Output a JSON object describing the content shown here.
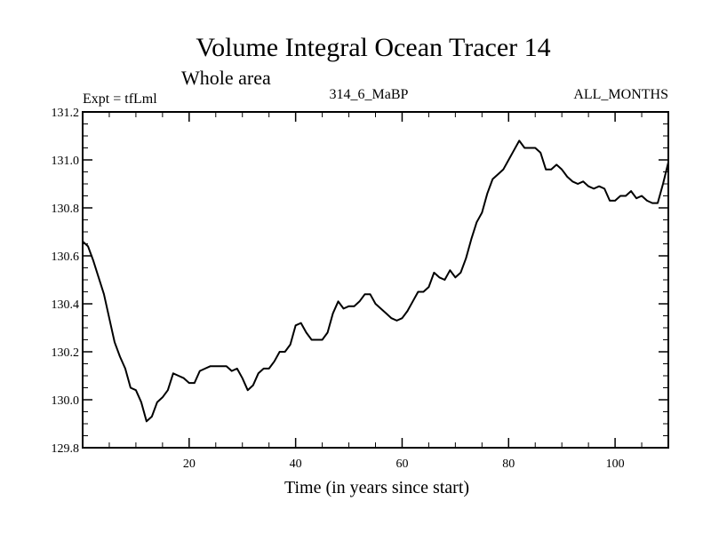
{
  "chart_data": {
    "type": "line",
    "title": "Volume Integral Ocean Tracer 14",
    "subtitle": "Whole area",
    "left_label": "Expt = tfLml",
    "center_label": "314_6_MaBP",
    "right_label": "ALL_MONTHS",
    "xlabel": "Time (in years since start)",
    "ylabel": "",
    "xlim": [
      0,
      110
    ],
    "ylim": [
      129.8,
      131.2
    ],
    "x_ticks": [
      20,
      40,
      60,
      80,
      100
    ],
    "y_ticks": [
      "129.8",
      "130.0",
      "130.2",
      "130.4",
      "130.6",
      "130.8",
      "131.0",
      "131.2"
    ],
    "grid": false,
    "series": [
      {
        "x": [
          0,
          1,
          2,
          3,
          4,
          5,
          6,
          7,
          8,
          9,
          10,
          11,
          12,
          13,
          14,
          15,
          16,
          17,
          18,
          19,
          20,
          21,
          22,
          23,
          24,
          25,
          26,
          27,
          28,
          29,
          30,
          31,
          32,
          33,
          34,
          35,
          36,
          37,
          38,
          39,
          40,
          41,
          42,
          43,
          44,
          45,
          46,
          47,
          48,
          49,
          50,
          51,
          52,
          53,
          54,
          55,
          56,
          57,
          58,
          59,
          60,
          61,
          62,
          63,
          64,
          65,
          66,
          67,
          68,
          69,
          70,
          71,
          72,
          73,
          74,
          75,
          76,
          77,
          78,
          79,
          80,
          81,
          82,
          83,
          84,
          85,
          86,
          87,
          88,
          89,
          90,
          91,
          92,
          93,
          94,
          95,
          96,
          97,
          98,
          99,
          100,
          101,
          102,
          103,
          104,
          105,
          106,
          107,
          108,
          109,
          110
        ],
        "values": [
          130.66,
          130.64,
          130.58,
          130.51,
          130.44,
          130.34,
          130.24,
          130.18,
          130.13,
          130.05,
          130.04,
          129.99,
          129.91,
          129.93,
          129.99,
          130.01,
          130.04,
          130.11,
          130.1,
          130.09,
          130.07,
          130.07,
          130.12,
          130.13,
          130.14,
          130.14,
          130.14,
          130.14,
          130.12,
          130.13,
          130.09,
          130.04,
          130.06,
          130.11,
          130.13,
          130.13,
          130.16,
          130.2,
          130.2,
          130.23,
          130.31,
          130.32,
          130.28,
          130.25,
          130.25,
          130.25,
          130.28,
          130.36,
          130.41,
          130.38,
          130.39,
          130.39,
          130.41,
          130.44,
          130.44,
          130.4,
          130.38,
          130.36,
          130.34,
          130.33,
          130.34,
          130.37,
          130.41,
          130.45,
          130.45,
          130.47,
          130.53,
          130.51,
          130.5,
          130.54,
          130.51,
          130.53,
          130.59,
          130.67,
          130.74,
          130.78,
          130.86,
          130.92,
          130.94,
          130.96,
          131.0,
          131.04,
          131.08,
          131.05,
          131.05,
          131.05,
          131.03,
          130.96,
          130.96,
          130.98,
          130.96,
          130.93,
          130.91,
          130.9,
          130.91,
          130.89,
          130.88,
          130.89,
          130.88,
          130.83,
          130.83,
          130.85,
          130.85,
          130.87,
          130.84,
          130.85,
          130.83,
          130.82,
          130.82,
          130.9,
          130.99
        ]
      }
    ]
  }
}
